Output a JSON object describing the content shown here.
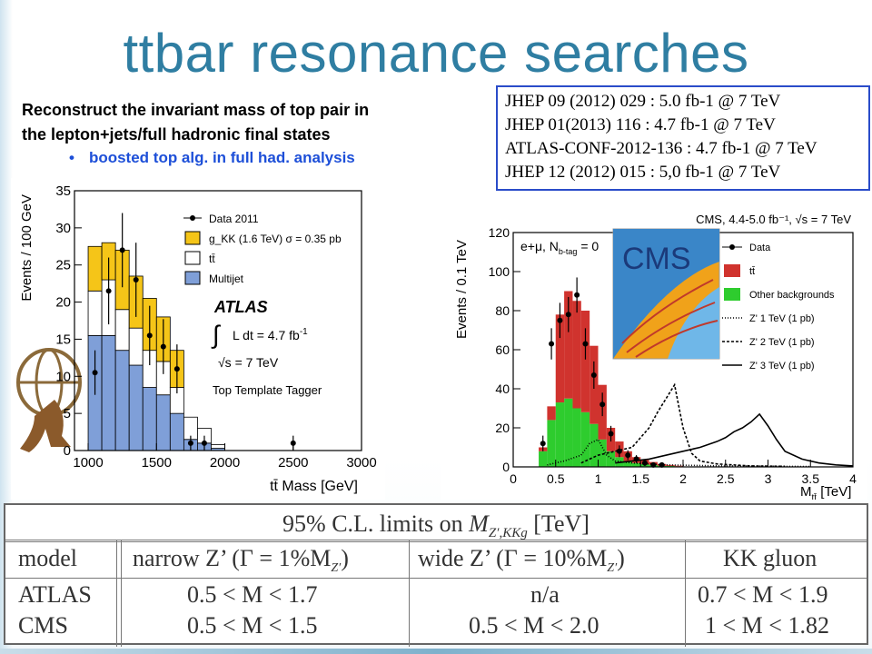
{
  "title": "ttbar resonance searches",
  "description": {
    "line1": "Reconstruct the invariant mass of top pair in",
    "line2": "the lepton+jets/full hadronic final states",
    "bullet": "boosted top alg. in full had. analysis"
  },
  "references": [
    "JHEP 09 (2012) 029 : 5.0 fb-1 @ 7 TeV",
    "JHEP 01(2013) 116 : 4.7 fb-1 @ 7 TeV",
    "ATLAS-CONF-2012-136 : 4.7 fb-1 @ 7 TeV",
    "JHEP 12 (2012) 015 : 5,0 fb-1 @ 7 TeV"
  ],
  "colors": {
    "title": "#2f7ea2",
    "bullet": "#1d4fd8",
    "ref_border": "#2a4cc9",
    "gkk": "#f5c518",
    "multijet": "#7f9fd8",
    "ttbar_red": "#d0332e",
    "other_green": "#2ecc2e"
  },
  "icons": [
    "atlas-logo-icon",
    "cms-logo-icon"
  ],
  "chart_data": [
    {
      "type": "bar",
      "experiment_label": "ATLAS",
      "xlabel": "tt̄ Mass [GeV]",
      "ylabel": "Events / 100 GeV",
      "xlim": [
        900,
        3000
      ],
      "ylim": [
        0,
        35
      ],
      "x_ticks": [
        1000,
        1500,
        2000,
        2500,
        3000
      ],
      "y_ticks": [
        0,
        5,
        10,
        15,
        20,
        25,
        30,
        35
      ],
      "bin_edges": [
        1000,
        1100,
        1200,
        1300,
        1400,
        1500,
        1600,
        1700,
        1800,
        1900,
        2000
      ],
      "series": [
        {
          "name": "Multijet",
          "values": [
            15.5,
            15.5,
            13.5,
            11.5,
            8.5,
            7.5,
            5,
            1.5,
            1,
            0.3
          ]
        },
        {
          "name": "tt̄",
          "values": [
            6,
            7.5,
            5.5,
            5,
            5,
            4.5,
            3.5,
            3,
            2,
            0.5
          ]
        },
        {
          "name": "g_KK (1.6 TeV) σ = 0.35 pb",
          "values": [
            6,
            5,
            8,
            7,
            7,
            6,
            5,
            0,
            0,
            0
          ]
        }
      ],
      "data_points": [
        {
          "x": 1050,
          "y": 10.5,
          "err": 3
        },
        {
          "x": 1150,
          "y": 21.5,
          "err": 4.5
        },
        {
          "x": 1250,
          "y": 27,
          "err": 5
        },
        {
          "x": 1350,
          "y": 23,
          "err": 5
        },
        {
          "x": 1450,
          "y": 15.5,
          "err": 4
        },
        {
          "x": 1550,
          "y": 14,
          "err": 3.7
        },
        {
          "x": 1650,
          "y": 11,
          "err": 3.3
        },
        {
          "x": 1750,
          "y": 1,
          "err": 1
        },
        {
          "x": 1850,
          "y": 1,
          "err": 1
        },
        {
          "x": 2500,
          "y": 1,
          "err": 1
        }
      ],
      "legend": [
        {
          "label": "Data 2011",
          "kind": "point"
        },
        {
          "label": "g_KK (1.6 TeV) σ = 0.35 pb",
          "kind": "box",
          "color": "#f5c518"
        },
        {
          "label": "tt̄",
          "kind": "box",
          "color": "#ffffff"
        },
        {
          "label": "Multijet",
          "kind": "box",
          "color": "#7f9fd8"
        }
      ],
      "legend_position": "top-right",
      "annotations": {
        "experiment": "ATLAS",
        "lumi_prefix": "∫",
        "lumi": "L dt = 4.7 fb",
        "lumi_exp": "-1",
        "energy": "√s = 7 TeV",
        "tagger": "Top Template Tagger"
      }
    },
    {
      "type": "bar",
      "experiment_label": "CMS",
      "header": "CMS, 4.4-5.0 fb⁻¹, √s = 7 TeV",
      "category_label": "e+μ, N",
      "category_sub": "b-tag",
      "category_suffix": " = 0",
      "xlabel": "M",
      "xlabel_sub": "tt̄",
      "xlabel_unit": " [TeV]",
      "ylabel": "Events / 0.1 TeV",
      "xlim": [
        0,
        4
      ],
      "ylim": [
        0,
        120
      ],
      "x_ticks": [
        0,
        0.5,
        1,
        1.5,
        2,
        2.5,
        3,
        3.5,
        4
      ],
      "y_ticks": [
        0,
        20,
        40,
        60,
        80,
        100,
        120
      ],
      "bin_edges": [
        0.3,
        0.4,
        0.5,
        0.6,
        0.7,
        0.8,
        0.9,
        1.0,
        1.1,
        1.2,
        1.3,
        1.4,
        1.5,
        1.6,
        1.7,
        1.8,
        1.9,
        2.0
      ],
      "series": [
        {
          "name": "Other backgrounds",
          "values": [
            8,
            24,
            33,
            35,
            30,
            28,
            22,
            14,
            8,
            5,
            3,
            2,
            1.5,
            1,
            0.5,
            0.5,
            0.3
          ]
        },
        {
          "name": "tt̄",
          "values": [
            2,
            7,
            45,
            55,
            55,
            52,
            40,
            28,
            12,
            8,
            5,
            3,
            2,
            1.5,
            1,
            0.5,
            0.3
          ]
        }
      ],
      "data_points": [
        {
          "x": 0.35,
          "y": 12,
          "err": 4
        },
        {
          "x": 0.45,
          "y": 63,
          "err": 8
        },
        {
          "x": 0.55,
          "y": 75,
          "err": 9
        },
        {
          "x": 0.65,
          "y": 78,
          "err": 9
        },
        {
          "x": 0.75,
          "y": 88,
          "err": 9
        },
        {
          "x": 0.85,
          "y": 63,
          "err": 8
        },
        {
          "x": 0.95,
          "y": 47,
          "err": 7
        },
        {
          "x": 1.05,
          "y": 32,
          "err": 6
        },
        {
          "x": 1.15,
          "y": 17,
          "err": 4
        },
        {
          "x": 1.25,
          "y": 8,
          "err": 3
        },
        {
          "x": 1.35,
          "y": 6,
          "err": 2.5
        },
        {
          "x": 1.45,
          "y": 4,
          "err": 2
        },
        {
          "x": 1.55,
          "y": 2,
          "err": 1.5
        },
        {
          "x": 1.65,
          "y": 1,
          "err": 1
        },
        {
          "x": 1.75,
          "y": 1,
          "err": 1
        }
      ],
      "zprime_1tev": {
        "x": [
          0.4,
          0.6,
          0.8,
          0.9,
          1.0,
          1.1,
          1.2,
          1.4,
          1.8,
          2.5,
          3.5
        ],
        "y": [
          1,
          3,
          6,
          12,
          14,
          6,
          3,
          2,
          1,
          0.5,
          0.2
        ]
      },
      "zprime_2tev": {
        "x": [
          0.8,
          1.0,
          1.2,
          1.4,
          1.6,
          1.7,
          1.8,
          1.9,
          2.0,
          2.1,
          2.2,
          2.4,
          2.8,
          3.2
        ],
        "y": [
          2,
          6,
          8,
          10,
          20,
          28,
          35,
          42,
          20,
          7,
          3,
          1.5,
          0.5,
          0.3
        ]
      },
      "zprime_3tev": {
        "x": [
          1.2,
          1.6,
          2.0,
          2.2,
          2.4,
          2.5,
          2.6,
          2.7,
          2.8,
          2.9,
          3.0,
          3.1,
          3.2,
          3.4,
          3.6,
          3.8,
          4.0
        ],
        "y": [
          2,
          4,
          8,
          10,
          13,
          15,
          18,
          20,
          23,
          27,
          21,
          14,
          8,
          4,
          2,
          1,
          0.5
        ]
      },
      "legend": [
        {
          "label": "Data",
          "kind": "point"
        },
        {
          "label": "tt̄",
          "kind": "box",
          "color": "#d0332e"
        },
        {
          "label": "Other backgrounds",
          "kind": "box",
          "color": "#2ecc2e"
        },
        {
          "label": "Z' 1 TeV (1 pb)",
          "kind": "line",
          "dash": "1 2"
        },
        {
          "label": "Z' 2 TeV (1 pb)",
          "kind": "line",
          "dash": "3 2"
        },
        {
          "label": "Z' 3 TeV (1 pb)",
          "kind": "line",
          "dash": ""
        }
      ],
      "legend_position": "top-right",
      "logo_text": "CMS"
    }
  ],
  "limits_table": {
    "caption": "95% C.L. limits on",
    "caption_var": "M",
    "caption_sub": "Z′,KKg",
    "caption_unit": " [TeV]",
    "headers": [
      "model",
      "narrow Z’ (Γ = 1%M",
      "wide Z’ (Γ = 10%M",
      "KK gluon"
    ],
    "header_sub": "Z′",
    "header_close": ")",
    "rows": [
      [
        "ATLAS",
        "0.5 < M < 1.7",
        "n/a",
        "0.7 < M < 1.9"
      ],
      [
        "CMS",
        "0.5 < M < 1.5",
        "0.5 < M < 2.0",
        "1 < M < 1.82"
      ]
    ]
  }
}
